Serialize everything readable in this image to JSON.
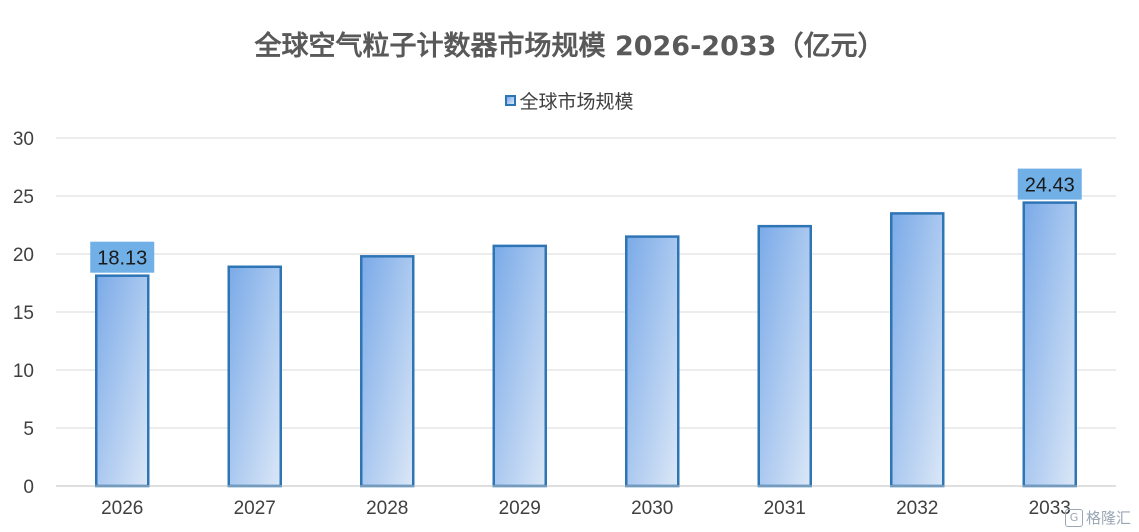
{
  "chart_data": {
    "type": "bar",
    "title": "全球空气粒子计数器市场规模 2026-2033（亿元）",
    "legend": {
      "position": "top",
      "label": "全球市场规模"
    },
    "categories": [
      "2026",
      "2027",
      "2028",
      "2029",
      "2030",
      "2031",
      "2032",
      "2033"
    ],
    "series": [
      {
        "name": "全球市场规模",
        "values": [
          18.13,
          18.9,
          19.8,
          20.7,
          21.5,
          22.4,
          23.5,
          24.43
        ]
      }
    ],
    "data_labels": [
      {
        "category": "2026",
        "text": "18.13"
      },
      {
        "category": "2033",
        "text": "24.43"
      }
    ],
    "y_ticks": [
      "0",
      "5",
      "10",
      "15",
      "20",
      "25",
      "30"
    ],
    "ylim": [
      0,
      30
    ],
    "grid": true,
    "colors": {
      "bar_border": "#2e75b6",
      "bar_fill_start": "#7aaae8",
      "bar_fill_end": "#dbe7f7",
      "label_bg": "#70b0e6",
      "grid": "#d9d9d9"
    }
  },
  "watermark": {
    "logo": "G",
    "text": "格隆汇"
  }
}
